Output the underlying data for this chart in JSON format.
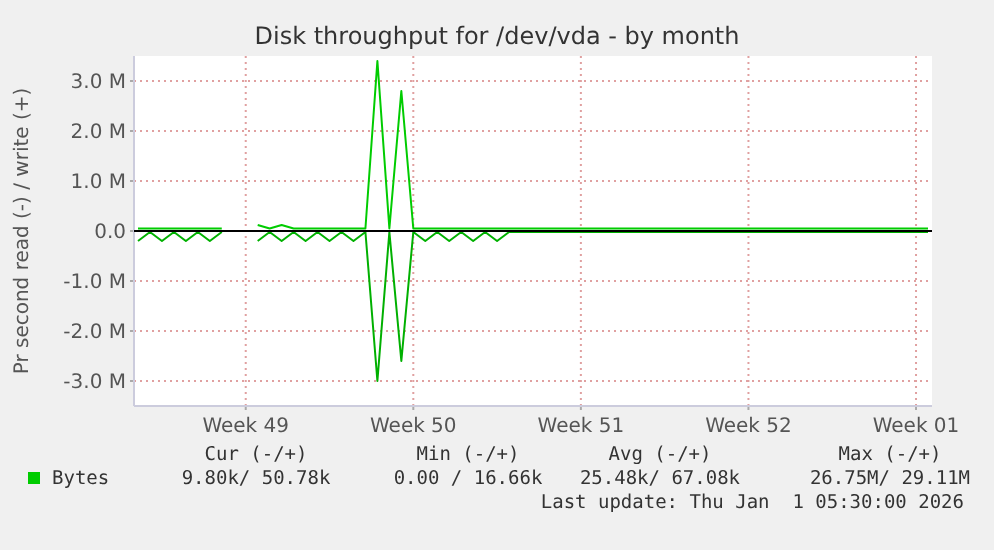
{
  "chart_data": {
    "type": "line",
    "title": "Disk throughput for /dev/vda - by month",
    "ylabel": "Pr second read (-) / write (+)",
    "categories": [
      null,
      null,
      null,
      null,
      null,
      null,
      null,
      null,
      null,
      "Week 49",
      null,
      null,
      null,
      null,
      null,
      null,
      null,
      null,
      null,
      null,
      null,
      null,
      null,
      "Week 50",
      null,
      null,
      null,
      null,
      null,
      null,
      null,
      null,
      null,
      null,
      null,
      null,
      null,
      "Week 51",
      null,
      null,
      null,
      null,
      null,
      null,
      null,
      null,
      null,
      null,
      null,
      null,
      null,
      "Week 52",
      null,
      null,
      null,
      null,
      null,
      null,
      null,
      null,
      null,
      null,
      null,
      null,
      null,
      "Week 01",
      null
    ],
    "series": [
      {
        "name": "Bytes",
        "color": "#00cc00",
        "values": [
          0.05,
          0.05,
          0.05,
          0.05,
          0.05,
          0.05,
          0.05,
          0.05,
          null,
          null,
          0.12,
          0.05,
          0.12,
          0.05,
          0.05,
          0.05,
          0.05,
          0.05,
          0.05,
          0.05,
          3.4,
          0.05,
          2.8,
          0.05,
          0.05,
          0.05,
          0.05,
          0.05,
          0.05,
          0.05,
          0.05,
          0.05,
          0.05,
          0.05,
          0.05,
          0.05,
          0.05,
          0.05,
          0.05,
          0.05,
          0.05,
          0.05,
          0.05,
          0.05,
          0.05,
          0.05,
          0.05,
          0.05,
          0.05,
          0.05,
          0.05,
          0.05,
          0.05,
          0.05,
          0.05,
          0.05,
          0.05,
          0.05,
          0.05,
          0.05,
          0.05,
          0.05,
          0.05,
          0.05,
          0.05,
          0.05,
          0.05
        ]
      },
      {
        "color": "#00b000",
        "values": [
          -0.2,
          -0.02,
          -0.2,
          -0.02,
          -0.2,
          -0.02,
          -0.2,
          -0.02,
          null,
          null,
          -0.2,
          -0.02,
          -0.2,
          -0.02,
          -0.2,
          -0.02,
          -0.2,
          -0.02,
          -0.2,
          -0.02,
          -3.0,
          -0.02,
          -2.6,
          -0.02,
          -0.2,
          -0.02,
          -0.2,
          -0.02,
          -0.2,
          -0.02,
          -0.2,
          -0.02,
          -0.02,
          -0.02,
          -0.02,
          -0.02,
          -0.02,
          -0.02,
          -0.02,
          -0.02,
          -0.02,
          -0.02,
          -0.02,
          -0.02,
          -0.02,
          -0.02,
          -0.02,
          -0.02,
          -0.02,
          -0.02,
          -0.02,
          -0.02,
          -0.02,
          -0.02,
          -0.02,
          -0.02,
          -0.02,
          -0.02,
          -0.02,
          -0.02,
          -0.02,
          -0.02,
          -0.02,
          -0.02,
          -0.02,
          -0.02,
          -0.02
        ]
      }
    ],
    "ylim": [
      -3.5,
      3.5
    ],
    "yticks": [
      {
        "value": -3,
        "label": "-3.0 M"
      },
      {
        "value": -2,
        "label": "-2.0 M"
      },
      {
        "value": -1,
        "label": "-1.0 M"
      },
      {
        "value": 0,
        "label": "0.0"
      },
      {
        "value": 1,
        "label": "1.0 M"
      },
      {
        "value": 2,
        "label": "2.0 M"
      },
      {
        "value": 3,
        "label": "3.0 M"
      }
    ],
    "grid": true,
    "legend": "bottom left",
    "annotations": [
      "Cur (-/+)",
      "Min (-/+)",
      "Avg (-/+)",
      "Max (-/+)",
      "9.80k/ 50.78k",
      "0.00 / 16.66k",
      "25.48k/ 67.08k",
      "26.75M/ 29.11M",
      "Last update: Thu Jan  1 05:30:00 2026"
    ]
  }
}
